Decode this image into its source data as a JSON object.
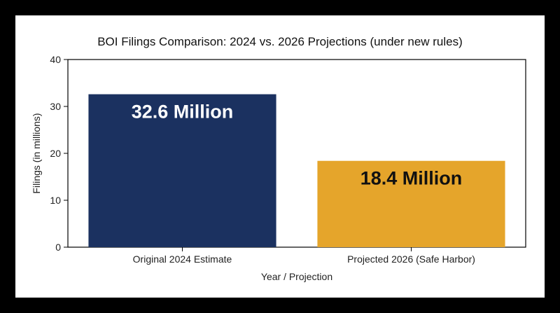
{
  "chart_data": {
    "type": "bar",
    "title": "BOI Filings Comparison: 2024 vs. 2026 Projections (under new rules)",
    "xlabel": "Year / Projection",
    "ylabel": "Filings (in millions)",
    "categories": [
      "Original 2024 Estimate",
      "Projected 2026 (Safe Harbor)"
    ],
    "values": [
      32.6,
      18.4
    ],
    "data_labels": [
      "32.6 Million",
      "18.4 Million"
    ],
    "ylim": [
      0,
      40
    ],
    "yticks": [
      0,
      10,
      20,
      30,
      40
    ],
    "ytick_labels": [
      "0",
      "10",
      "20",
      "30",
      "40"
    ],
    "bar_colors": [
      "#1b3160",
      "#e5a52b"
    ],
    "data_label_colors": [
      "#ffffff",
      "#111111"
    ],
    "grid": false,
    "legend": "none"
  }
}
